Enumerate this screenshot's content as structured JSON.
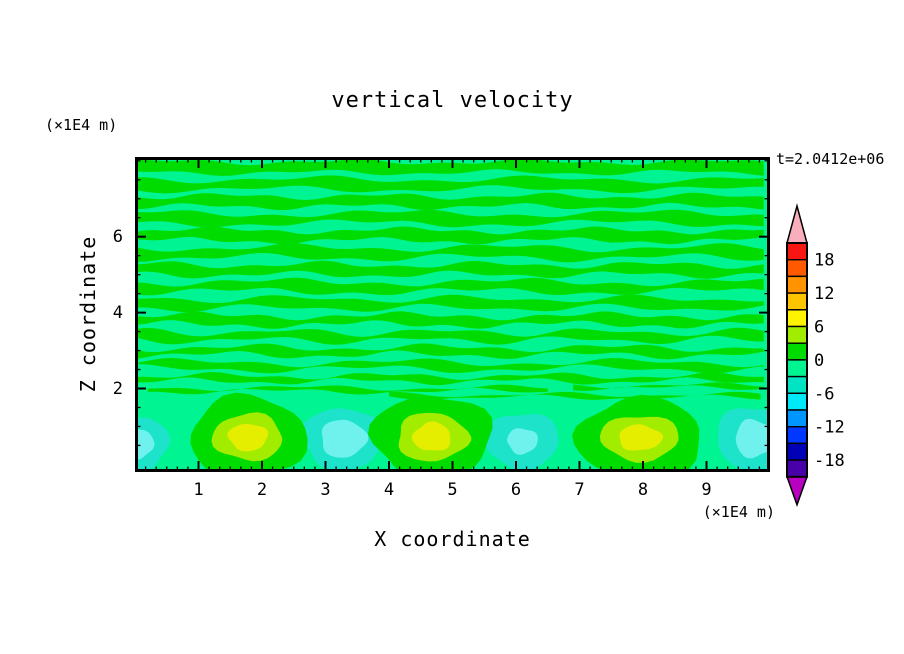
{
  "title": "vertical velocity",
  "timestamp_label": "t=2.0412e+06",
  "axes": {
    "x": {
      "label": "X coordinate",
      "unit": "(×1E4 m)",
      "range": [
        0,
        10
      ],
      "major_ticks": [
        1,
        2,
        3,
        4,
        5,
        6,
        7,
        8,
        9
      ],
      "minor_divisions_per_unit": 6
    },
    "z": {
      "label": "Z coordinate",
      "unit": "(×1E4 m)",
      "range": [
        -0.2,
        8.1
      ],
      "major_ticks": [
        2,
        4,
        6
      ],
      "minor_step": 0.5
    }
  },
  "colorbar": {
    "labels": [
      "18",
      "12",
      "6",
      "0",
      "-6",
      "-12",
      "-18"
    ],
    "band_colors": [
      "#F81613",
      "#FF5A00",
      "#FF9400",
      "#FFC400",
      "#FFF400",
      "#A2EC00",
      "#00DC00",
      "#00F592",
      "#00E4C4",
      "#00E9F8",
      "#0096FF",
      "#0038FF",
      "#0000B4",
      "#4800A8"
    ],
    "over_arrow_color": "#F8AEBC",
    "under_arrow_color": "#B800C0",
    "outline_color": "#000000"
  },
  "chart_data": {
    "type": "heatmap",
    "subtype": "filled-contour",
    "title": "vertical velocity",
    "xlabel": "X coordinate (×1E4 m)",
    "ylabel": "Z coordinate (×1E4 m)",
    "time_annotation": "t=2.0412e+06",
    "x_range": [
      0,
      10
    ],
    "z_range": [
      0,
      8.1
    ],
    "contour_interval": 3,
    "labeled_levels": [
      18,
      12,
      6,
      0,
      -6,
      -12,
      -18
    ],
    "value_colors": {
      "background_near_zero_negative": "#00F592",
      "near_zero_positive": "#00DC00",
      "plus_band": "#A2EC00",
      "updraft_core": "#E6EE00",
      "minus_band": "#1CE3C9",
      "downdraft_core": "#6FF2EE"
    },
    "description": "Vertical velocity field: weak alternating horizontal wave stripes (values oscillating about 0) above z≈2, and convection cells below z≈2 with yellow-cored updrafts and cyan-cored downdrafts near the bottom boundary.",
    "stripes": [
      [
        7.83,
        0.28,
        0.055,
        2.2,
        0.5,
        0.035,
        5.1,
        2.0,
        0,
        10
      ],
      [
        7.38,
        0.26,
        0.065,
        1.8,
        2.7,
        0.045,
        4.3,
        0.7,
        0,
        10
      ],
      [
        6.93,
        0.27,
        0.06,
        2.5,
        4.4,
        0.04,
        5.7,
        1.9,
        0,
        10
      ],
      [
        6.48,
        0.26,
        0.075,
        1.6,
        1.2,
        0.045,
        4.9,
        3.6,
        0,
        10
      ],
      [
        6.03,
        0.27,
        0.065,
        2.1,
        5.3,
        0.04,
        6.2,
        0.4,
        0,
        10
      ],
      [
        5.58,
        0.26,
        0.075,
        1.9,
        3.1,
        0.05,
        4.6,
        2.8,
        0,
        10
      ],
      [
        5.13,
        0.26,
        0.065,
        2.4,
        0.9,
        0.045,
        5.4,
        4.4,
        0,
        10
      ],
      [
        4.68,
        0.25,
        0.075,
        1.7,
        4.0,
        0.05,
        5.0,
        1.3,
        0,
        10
      ],
      [
        4.24,
        0.24,
        0.07,
        2.3,
        2.2,
        0.05,
        4.4,
        5.0,
        0,
        10
      ],
      [
        3.8,
        0.23,
        0.07,
        2.0,
        5.8,
        0.05,
        5.8,
        2.5,
        0,
        10
      ],
      [
        3.38,
        0.21,
        0.075,
        2.6,
        1.6,
        0.05,
        4.8,
        0.2,
        0,
        10
      ],
      [
        2.98,
        0.19,
        0.07,
        2.2,
        3.8,
        0.05,
        5.2,
        3.3,
        0,
        10
      ],
      [
        2.6,
        0.17,
        0.075,
        1.8,
        0.2,
        0.05,
        4.5,
        5.5,
        0,
        10
      ],
      [
        2.26,
        0.14,
        0.065,
        2.4,
        4.8,
        0.04,
        5.6,
        1.1,
        0,
        10
      ],
      [
        1.97,
        0.09,
        0.055,
        2.0,
        2.4,
        0.035,
        5.0,
        4.1,
        0.2,
        6.6
      ],
      [
        1.8,
        0.07,
        0.05,
        2.3,
        5.1,
        0.03,
        4.7,
        0.8,
        4.0,
        9.9
      ],
      [
        2.05,
        0.07,
        0.05,
        2.1,
        1.4,
        0.03,
        5.3,
        2.9,
        6.9,
        10
      ]
    ],
    "updraft_cells": [
      {
        "cx": 1.78,
        "cz": 0.72,
        "rings": [
          [
            "#00DC00",
            0.92,
            1.08
          ],
          [
            "#A2EC00",
            0.55,
            0.62
          ],
          [
            "#E6EE00",
            0.31,
            0.36
          ]
        ]
      },
      {
        "cx": 4.68,
        "cz": 0.72,
        "rings": [
          [
            "#00DC00",
            0.95,
            1.1
          ],
          [
            "#A2EC00",
            0.56,
            0.64
          ],
          [
            "#E6EE00",
            0.3,
            0.38
          ]
        ]
      },
      {
        "cx": 7.95,
        "cz": 0.7,
        "rings": [
          [
            "#00DC00",
            1.0,
            1.05
          ],
          [
            "#A2EC00",
            0.62,
            0.6
          ],
          [
            "#E6EE00",
            0.34,
            0.34
          ]
        ]
      }
    ],
    "downdraft_cells": [
      {
        "cx": 0.05,
        "cz": 0.55,
        "rings": [
          [
            "#1CE3C9",
            0.48,
            0.72
          ],
          [
            "#6FF2EE",
            0.24,
            0.4
          ]
        ]
      },
      {
        "cx": 3.28,
        "cz": 0.68,
        "rings": [
          [
            "#1CE3C9",
            0.65,
            0.82
          ],
          [
            "#6FF2EE",
            0.36,
            0.5
          ]
        ]
      },
      {
        "cx": 6.1,
        "cz": 0.62,
        "rings": [
          [
            "#1CE3C9",
            0.58,
            0.75
          ],
          [
            "#6FF2EE",
            0.24,
            0.34
          ]
        ]
      },
      {
        "cx": 9.75,
        "cz": 0.68,
        "rings": [
          [
            "#1CE3C9",
            0.6,
            0.85
          ],
          [
            "#6FF2EE",
            0.3,
            0.5
          ]
        ]
      }
    ]
  }
}
